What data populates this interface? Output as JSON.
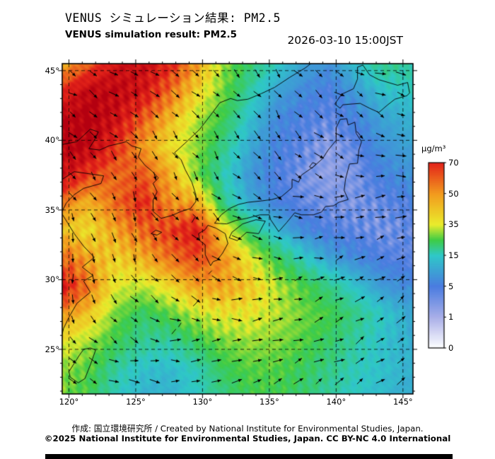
{
  "header": {
    "title_jp": "VENUS シミュレーション結果: PM2.5",
    "title_en": "VENUS simulation result: PM2.5",
    "datetime": "2026-03-10 15:00JST"
  },
  "footer": {
    "credit": "作成: 国立環境研究所 / Created by National Institute for Environmental Studies, Japan.",
    "license": "©2025 National Institute for Environmental Studies, Japan. CC BY-NC 4.0 International"
  },
  "axes": {
    "x_ticks": [
      "120°",
      "125°",
      "130°",
      "135°",
      "140°",
      "145°"
    ],
    "x_values": [
      120,
      125,
      130,
      135,
      140,
      145
    ],
    "y_ticks": [
      "45°",
      "40°",
      "35°",
      "30°",
      "25°"
    ],
    "y_values": [
      45,
      40,
      35,
      30,
      25
    ]
  },
  "colorbar": {
    "unit": "μg/m³",
    "tick_labels": [
      "70",
      "50",
      "35",
      "15",
      "5",
      "1",
      "0"
    ],
    "levels": [
      0,
      1,
      5,
      15,
      35,
      50,
      70
    ],
    "orientation": "vertical-right"
  },
  "chart_data": {
    "type": "heatmap",
    "title": "VENUS simulation result: PM2.5",
    "title_jp": "VENUS シミュレーション結果: PM2.5",
    "datetime": "2026-03-10 15:00JST",
    "unit": "μg/m³",
    "lon_range": [
      119.5,
      145.75
    ],
    "lat_range": [
      21.8,
      45.5
    ],
    "levels": [
      0,
      1,
      5,
      15,
      35,
      50,
      70
    ],
    "colormap": {
      "values": [
        0,
        1,
        5,
        15,
        25,
        35,
        50,
        70,
        90
      ],
      "colors": [
        "#ffffff",
        "#a9afe8",
        "#4a7ce0",
        "#2fc8c8",
        "#3ecc46",
        "#eaec2c",
        "#f29a1e",
        "#e3231a",
        "#b40010"
      ]
    },
    "grid_lons": [
      119.5,
      121.5,
      123.5,
      125.5,
      127.5,
      129.5,
      131.5,
      133.5,
      135.5,
      137.5,
      139.5,
      141.5,
      143.5,
      145.5
    ],
    "grid_lats": [
      45.5,
      43.5,
      41.5,
      39.5,
      37.5,
      35.5,
      33.5,
      31.5,
      29.5,
      27.5,
      25.5,
      23.5,
      21.5
    ],
    "pm25": [
      [
        45,
        60,
        78,
        82,
        72,
        50,
        30,
        22,
        16,
        10,
        8,
        14,
        20,
        18
      ],
      [
        70,
        85,
        86,
        78,
        58,
        40,
        28,
        18,
        10,
        7,
        5,
        9,
        14,
        15
      ],
      [
        86,
        92,
        80,
        60,
        45,
        32,
        24,
        14,
        7,
        5,
        4,
        6,
        10,
        12
      ],
      [
        92,
        86,
        68,
        50,
        38,
        30,
        20,
        11,
        6,
        4,
        2,
        4,
        8,
        10
      ],
      [
        80,
        65,
        58,
        62,
        48,
        28,
        17,
        9,
        5,
        3,
        2,
        3,
        6,
        8
      ],
      [
        55,
        45,
        58,
        70,
        52,
        48,
        20,
        11,
        6,
        4,
        3,
        3,
        4,
        5
      ],
      [
        42,
        38,
        48,
        58,
        66,
        75,
        40,
        22,
        13,
        7,
        5,
        4,
        3,
        4
      ],
      [
        60,
        48,
        40,
        46,
        56,
        64,
        52,
        36,
        24,
        16,
        10,
        7,
        5,
        4
      ],
      [
        75,
        55,
        35,
        32,
        38,
        48,
        48,
        42,
        32,
        26,
        20,
        14,
        9,
        7
      ],
      [
        50,
        42,
        28,
        22,
        26,
        32,
        36,
        36,
        32,
        28,
        25,
        20,
        15,
        11
      ],
      [
        36,
        30,
        24,
        19,
        18,
        23,
        28,
        30,
        29,
        26,
        22,
        18,
        14,
        12
      ],
      [
        30,
        26,
        18,
        14,
        13,
        16,
        23,
        26,
        26,
        23,
        20,
        16,
        14,
        12
      ],
      [
        28,
        24,
        16,
        12,
        12,
        15,
        20,
        24,
        24,
        22,
        18,
        15,
        13,
        11
      ]
    ],
    "wind": {
      "lons": [
        120,
        125,
        130,
        135,
        140,
        145
      ],
      "lats": [
        45,
        40,
        35,
        30,
        25
      ],
      "heading_deg_ccw_from_east": [
        [
          -25,
          -35,
          -45,
          -50,
          -35,
          -15
        ],
        [
          -35,
          -45,
          -55,
          -60,
          -40,
          -20
        ],
        [
          -65,
          -75,
          -50,
          -25,
          5,
          15
        ],
        [
          -85,
          -65,
          -25,
          5,
          25,
          35
        ],
        [
          -45,
          -15,
          5,
          20,
          30,
          35
        ]
      ]
    },
    "overlays": [
      "wind vector arrows",
      "coastlines",
      "5-degree dashed graticule"
    ],
    "grid_on": true,
    "legend_position": "colorbar-right"
  }
}
